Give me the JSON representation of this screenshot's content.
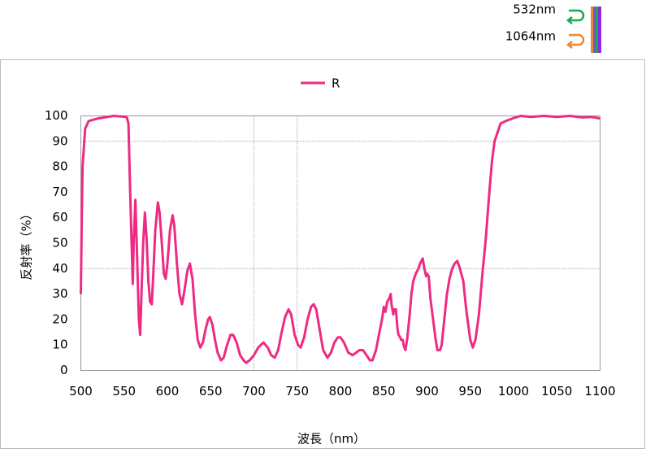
{
  "header": {
    "labels": [
      {
        "text": "532nm",
        "color": "#1aa84a"
      },
      {
        "text": "1064nm",
        "color": "#ee8833"
      }
    ]
  },
  "chart_data": {
    "type": "line",
    "xlabel": "波長（nm）",
    "ylabel": "反射率（%）",
    "x": [
      500,
      501,
      502,
      505,
      509,
      520,
      538,
      553,
      555,
      557,
      560,
      561,
      563,
      565,
      567,
      568.5,
      570,
      572,
      574,
      576,
      578,
      580,
      582,
      584,
      586,
      589,
      591,
      594,
      596,
      598,
      600,
      603,
      606,
      608,
      611,
      614,
      617,
      620,
      623,
      626,
      629,
      632,
      635,
      638,
      641,
      644,
      647,
      649,
      652,
      655,
      658,
      662,
      665,
      669,
      673,
      676,
      680,
      684,
      688,
      691,
      695,
      700,
      705,
      711,
      716,
      720,
      724,
      728,
      732,
      736,
      740,
      743,
      747,
      751,
      754,
      758,
      762,
      766,
      769,
      772,
      776,
      780,
      785,
      789,
      793,
      797,
      800,
      804,
      809,
      814,
      818,
      822,
      826,
      830,
      834,
      837,
      841,
      845,
      848,
      850,
      852,
      854,
      856,
      858,
      859,
      861,
      862,
      864,
      866,
      867,
      869,
      870,
      872,
      873,
      875,
      877,
      880,
      882,
      884,
      887,
      890,
      892,
      895,
      897,
      899,
      900,
      902,
      904,
      907,
      910,
      912,
      915,
      917,
      920,
      923,
      926,
      929,
      932,
      935,
      938,
      942,
      945,
      948,
      950,
      953,
      956,
      960,
      964,
      968,
      972,
      975,
      978,
      981,
      985,
      991,
      999,
      1008,
      1020,
      1035,
      1050,
      1065,
      1080,
      1090,
      1100
    ],
    "series": [
      {
        "name": "R",
        "color": "#ef2a82",
        "values": [
          30,
          60,
          80,
          95,
          98,
          99,
          100,
          99.6,
          97,
          70,
          34,
          50,
          67,
          45,
          20,
          14,
          30,
          50,
          62,
          52,
          35,
          27,
          26,
          40,
          55,
          66,
          62,
          48,
          38,
          36,
          42,
          55,
          61,
          57,
          42,
          30,
          26,
          32,
          39,
          42,
          36,
          22,
          12,
          9,
          11,
          16,
          20,
          21,
          18,
          12,
          7,
          4,
          5,
          10,
          14,
          14,
          11,
          6,
          4,
          3,
          4,
          6,
          9,
          11,
          9,
          6,
          5,
          8,
          15,
          21,
          24,
          22,
          14,
          10,
          9,
          13,
          20,
          25,
          26,
          24,
          16,
          8,
          5,
          7,
          11,
          13,
          13,
          11,
          7,
          6,
          7,
          8,
          8,
          6,
          4,
          4,
          8,
          15,
          20,
          25,
          23,
          27,
          28,
          30,
          26,
          22,
          24,
          24,
          16,
          14,
          13,
          12,
          12,
          10,
          8,
          12,
          22,
          30,
          35,
          38,
          40,
          42,
          44,
          40,
          37,
          38,
          37,
          28,
          20,
          12,
          8,
          8,
          10,
          20,
          30,
          36,
          40,
          42,
          43,
          40,
          35,
          25,
          17,
          12,
          9,
          12,
          22,
          38,
          52,
          70,
          82,
          90,
          93,
          97,
          98,
          99,
          100,
          99.6,
          100,
          99.6,
          100,
          99.4,
          99.6,
          99
        ]
      }
    ],
    "xlim": [
      500,
      1100
    ],
    "xticks": [
      500,
      550,
      600,
      650,
      700,
      750,
      800,
      850,
      900,
      950,
      1000,
      1050,
      1100
    ],
    "ylim": [
      0,
      100
    ],
    "yticks": [
      0,
      10,
      20,
      30,
      40,
      50,
      60,
      70,
      80,
      90,
      100
    ],
    "grid_x": [
      700,
      750
    ],
    "grid_y": [
      40,
      90
    ]
  }
}
